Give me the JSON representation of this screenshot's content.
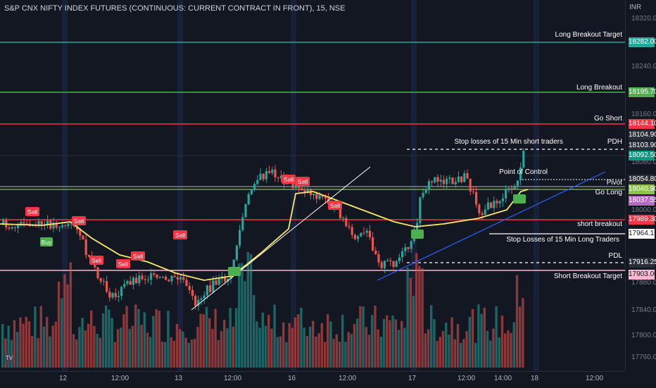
{
  "title": "S&P CNX NIFTY INDEX FUTURES (CONTINUOUS: CURRENT CONTRACT IN FRONT), 15, NSE",
  "currency": "INR",
  "logo_text": "TV",
  "price_axis": {
    "ticks": [
      "18320.00",
      "18240.00",
      "18160.00",
      "18080.00",
      "18000.00",
      "17880.00",
      "17840.00",
      "17800.00",
      "17760.00"
    ],
    "tags": [
      {
        "value": "18282.00",
        "color": "#26a69a"
      },
      {
        "value": "18195.70",
        "color": "#4caf50"
      },
      {
        "value": "18144.10",
        "color": "#f23645"
      },
      {
        "value": "18104.90",
        "color": "#2a2e39"
      },
      {
        "value": "18103.90",
        "color": "#2a2e39"
      },
      {
        "value": "18092.50",
        "color": "#089981"
      },
      {
        "value": "18054.80",
        "color": "#2a2e39"
      },
      {
        "value": "18040.90",
        "color": "#8bc34a"
      },
      {
        "value": "18037.55",
        "color": "#ba68c8"
      },
      {
        "value": "17989.30",
        "color": "#f23645"
      },
      {
        "value": "17964.15",
        "color": "#ffffff"
      },
      {
        "value": "17916.25",
        "color": "#2a2e39"
      },
      {
        "value": "17903.00",
        "color": "#f8bbd0"
      }
    ]
  },
  "time_axis": [
    "12",
    "12:00",
    "13",
    "12:00",
    "16",
    "12:00",
    "17",
    "12:00",
    "14:00",
    "18",
    "12:00"
  ],
  "levels": [
    {
      "label": "Long Breakout Target",
      "color": "#26a69a"
    },
    {
      "label": "Long Breakout",
      "color": "#4caf50"
    },
    {
      "label": "Go Short",
      "color": "#f23645"
    },
    {
      "label": "PDH",
      "color": "#ffffff"
    },
    {
      "label": "Stop losses of 15 Min short traders",
      "color": "#ffffff"
    },
    {
      "label": "Point of Control",
      "color": "#ffffff"
    },
    {
      "label": "Pivot",
      "color": "#ffffff"
    },
    {
      "label": "Go Long",
      "color": "#8bc34a"
    },
    {
      "label": "short breakout",
      "color": "#f23645"
    },
    {
      "label": "Stop Losses of 15 Min Long Traders",
      "color": "#ffffff"
    },
    {
      "label": "PDL",
      "color": "#ffffff"
    },
    {
      "label": "Short  Breakout Target",
      "color": "#f8bbd0"
    }
  ],
  "signals": {
    "sell_label": "Sell",
    "buy_label": "Buy"
  },
  "colors": {
    "up": "#26a69a",
    "down": "#ef5350",
    "ma": "#fbe86b",
    "trendline_support": "#2962ff",
    "trendline_white": "#ffffff"
  }
}
